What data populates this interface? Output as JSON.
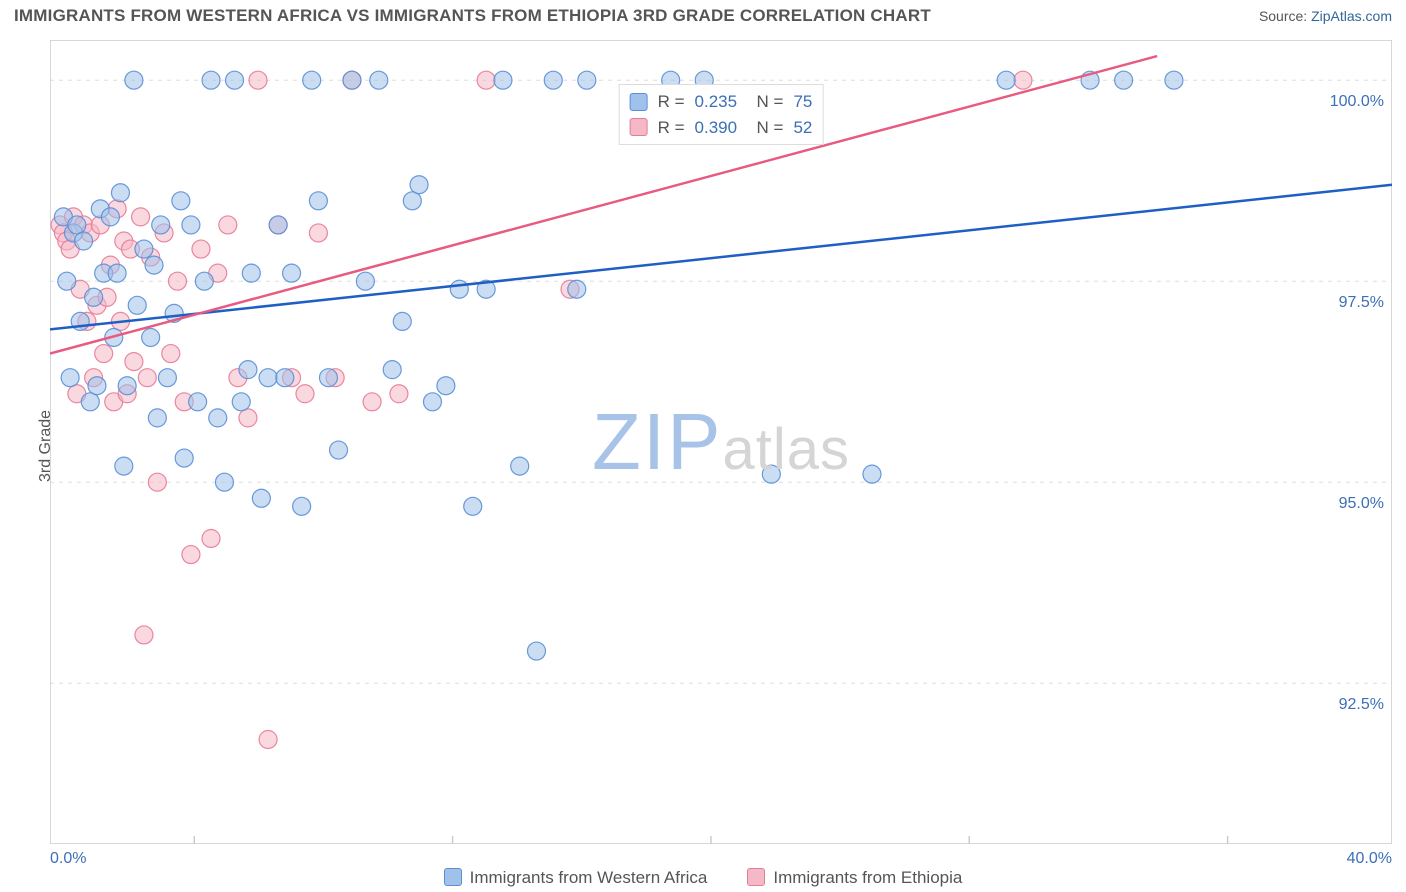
{
  "header": {
    "title": "IMMIGRANTS FROM WESTERN AFRICA VS IMMIGRANTS FROM ETHIOPIA 3RD GRADE CORRELATION CHART",
    "source_prefix": "Source: ",
    "source_link": "ZipAtlas.com"
  },
  "chart": {
    "type": "scatter",
    "xlim": [
      0,
      40
    ],
    "ylim": [
      90.5,
      100.5
    ],
    "x_tick_positions": [
      4.3,
      12.0,
      19.7,
      27.4,
      35.1
    ],
    "y_gridlines": [
      92.5,
      95.0,
      97.5,
      100.0
    ],
    "y_tick_labels": [
      "92.5%",
      "95.0%",
      "97.5%",
      "100.0%"
    ],
    "x_extreme_labels": [
      "0.0%",
      "40.0%"
    ],
    "ylabel": "3rd Grade",
    "grid_color": "#dddddd",
    "axis_color": "#cccccc",
    "label_color": "#3b6fb6",
    "marker_radius": 9,
    "marker_opacity": 0.55,
    "line_width": 2.5,
    "series": [
      {
        "name": "Immigrants from Western Africa",
        "fill": "#9fc1ea",
        "stroke": "#5a8fd6",
        "line_color": "#1f5fc4",
        "R": "0.235",
        "N": "75",
        "trend": {
          "x1": 0,
          "y1": 96.9,
          "x2": 40,
          "y2": 98.7
        },
        "points": [
          [
            0.4,
            98.3
          ],
          [
            0.5,
            97.5
          ],
          [
            0.6,
            96.3
          ],
          [
            0.7,
            98.1
          ],
          [
            0.8,
            98.2
          ],
          [
            0.9,
            97.0
          ],
          [
            1.0,
            98.0
          ],
          [
            1.2,
            96.0
          ],
          [
            1.3,
            97.3
          ],
          [
            1.4,
            96.2
          ],
          [
            1.5,
            98.4
          ],
          [
            1.6,
            97.6
          ],
          [
            1.8,
            98.3
          ],
          [
            1.9,
            96.8
          ],
          [
            2.0,
            97.6
          ],
          [
            2.1,
            98.6
          ],
          [
            2.2,
            95.2
          ],
          [
            2.3,
            96.2
          ],
          [
            2.5,
            100.0
          ],
          [
            2.6,
            97.2
          ],
          [
            2.8,
            97.9
          ],
          [
            3.0,
            96.8
          ],
          [
            3.1,
            97.7
          ],
          [
            3.2,
            95.8
          ],
          [
            3.3,
            98.2
          ],
          [
            3.5,
            96.3
          ],
          [
            3.7,
            97.1
          ],
          [
            3.9,
            98.5
          ],
          [
            4.0,
            95.3
          ],
          [
            4.2,
            98.2
          ],
          [
            4.4,
            96.0
          ],
          [
            4.6,
            97.5
          ],
          [
            4.8,
            100.0
          ],
          [
            5.0,
            95.8
          ],
          [
            5.2,
            95.0
          ],
          [
            5.5,
            100.0
          ],
          [
            5.7,
            96.0
          ],
          [
            5.9,
            96.4
          ],
          [
            6.0,
            97.6
          ],
          [
            6.3,
            94.8
          ],
          [
            6.5,
            96.3
          ],
          [
            6.8,
            98.2
          ],
          [
            7.0,
            96.3
          ],
          [
            7.2,
            97.6
          ],
          [
            7.5,
            94.7
          ],
          [
            7.8,
            100.0
          ],
          [
            8.0,
            98.5
          ],
          [
            8.3,
            96.3
          ],
          [
            8.6,
            95.4
          ],
          [
            9.0,
            100.0
          ],
          [
            9.4,
            97.5
          ],
          [
            9.8,
            100.0
          ],
          [
            10.2,
            96.4
          ],
          [
            10.5,
            97.0
          ],
          [
            10.8,
            98.5
          ],
          [
            11.0,
            98.7
          ],
          [
            11.4,
            96.0
          ],
          [
            11.8,
            96.2
          ],
          [
            12.2,
            97.4
          ],
          [
            12.6,
            94.7
          ],
          [
            13.0,
            97.4
          ],
          [
            13.5,
            100.0
          ],
          [
            14.0,
            95.2
          ],
          [
            14.5,
            92.9
          ],
          [
            15.0,
            100.0
          ],
          [
            15.7,
            97.4
          ],
          [
            16.0,
            100.0
          ],
          [
            18.5,
            100.0
          ],
          [
            19.5,
            100.0
          ],
          [
            21.5,
            95.1
          ],
          [
            24.5,
            95.1
          ],
          [
            28.5,
            100.0
          ],
          [
            31.0,
            100.0
          ],
          [
            32.0,
            100.0
          ],
          [
            33.5,
            100.0
          ]
        ]
      },
      {
        "name": "Immigrants from Ethiopia",
        "fill": "#f4b8c6",
        "stroke": "#e87b96",
        "line_color": "#e85a7f",
        "R": "0.390",
        "N": "52",
        "trend": {
          "x1": 0,
          "y1": 96.6,
          "x2": 33,
          "y2": 100.3
        },
        "points": [
          [
            0.3,
            98.2
          ],
          [
            0.4,
            98.1
          ],
          [
            0.5,
            98.0
          ],
          [
            0.6,
            97.9
          ],
          [
            0.7,
            98.3
          ],
          [
            0.8,
            96.1
          ],
          [
            0.9,
            97.4
          ],
          [
            1.0,
            98.2
          ],
          [
            1.1,
            97.0
          ],
          [
            1.2,
            98.1
          ],
          [
            1.3,
            96.3
          ],
          [
            1.4,
            97.2
          ],
          [
            1.5,
            98.2
          ],
          [
            1.6,
            96.6
          ],
          [
            1.7,
            97.3
          ],
          [
            1.8,
            97.7
          ],
          [
            1.9,
            96.0
          ],
          [
            2.0,
            98.4
          ],
          [
            2.1,
            97.0
          ],
          [
            2.2,
            98.0
          ],
          [
            2.3,
            96.1
          ],
          [
            2.4,
            97.9
          ],
          [
            2.5,
            96.5
          ],
          [
            2.7,
            98.3
          ],
          [
            2.8,
            93.1
          ],
          [
            2.9,
            96.3
          ],
          [
            3.0,
            97.8
          ],
          [
            3.2,
            95.0
          ],
          [
            3.4,
            98.1
          ],
          [
            3.6,
            96.6
          ],
          [
            3.8,
            97.5
          ],
          [
            4.0,
            96.0
          ],
          [
            4.2,
            94.1
          ],
          [
            4.5,
            97.9
          ],
          [
            4.8,
            94.3
          ],
          [
            5.0,
            97.6
          ],
          [
            5.3,
            98.2
          ],
          [
            5.6,
            96.3
          ],
          [
            5.9,
            95.8
          ],
          [
            6.2,
            100.0
          ],
          [
            6.5,
            91.8
          ],
          [
            6.8,
            98.2
          ],
          [
            7.2,
            96.3
          ],
          [
            7.6,
            96.1
          ],
          [
            8.0,
            98.1
          ],
          [
            8.5,
            96.3
          ],
          [
            9.0,
            100.0
          ],
          [
            9.6,
            96.0
          ],
          [
            10.4,
            96.1
          ],
          [
            13.0,
            100.0
          ],
          [
            15.5,
            97.4
          ],
          [
            29.0,
            100.0
          ]
        ]
      }
    ]
  },
  "bottom_legend": {
    "items": [
      {
        "label": "Immigrants from Western Africa",
        "fill": "#9fc1ea",
        "stroke": "#5a8fd6"
      },
      {
        "label": "Immigrants from Ethiopia",
        "fill": "#f4b8c6",
        "stroke": "#e87b96"
      }
    ]
  },
  "watermark": {
    "left": "ZIP",
    "right": "atlas"
  }
}
